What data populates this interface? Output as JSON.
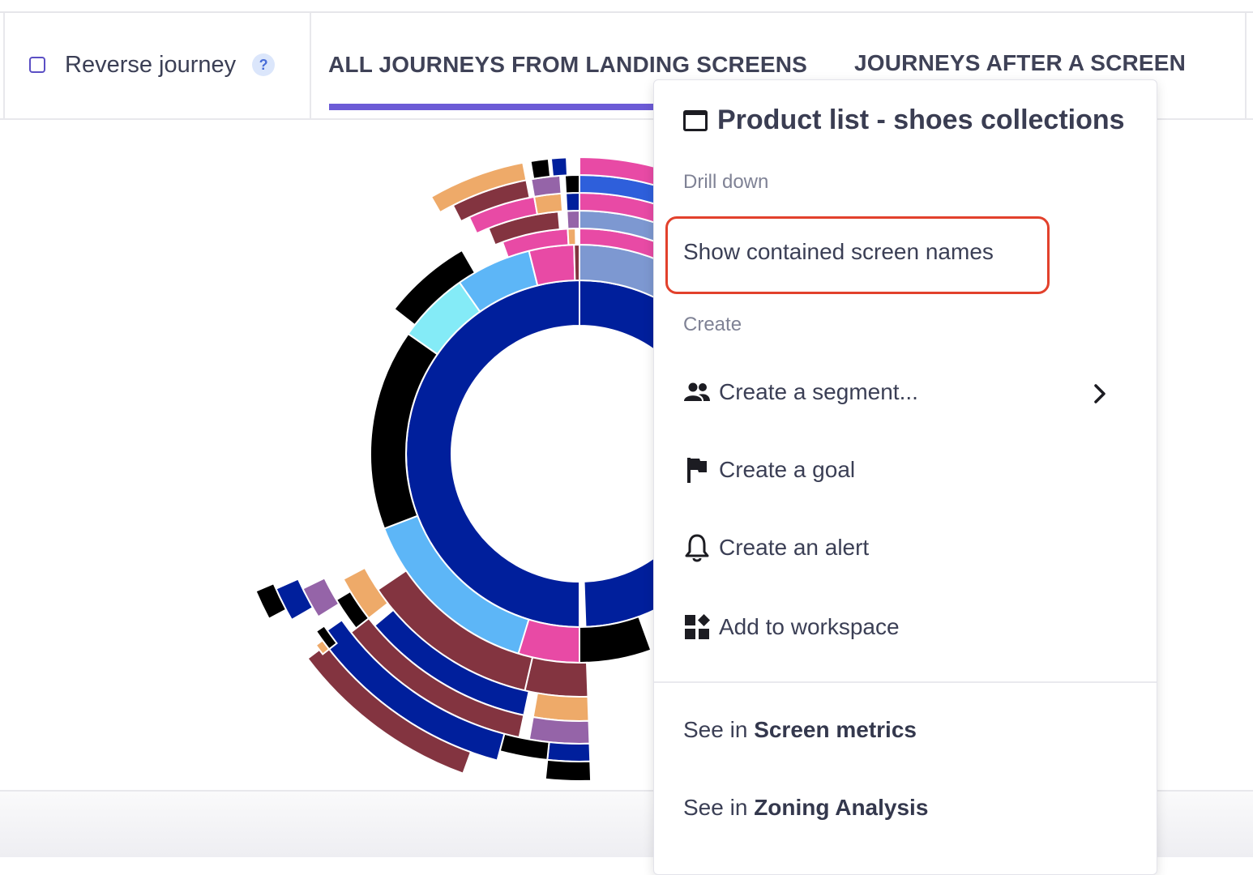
{
  "toolbar": {
    "reverse_journey_label": "Reverse journey",
    "help_glyph": "?",
    "tabs": [
      {
        "label": "ALL JOURNEYS FROM LANDING SCREENS",
        "active": true
      },
      {
        "label": "JOURNEYS AFTER A SCREEN",
        "active": false
      }
    ],
    "accent_color": "#6c5bd6"
  },
  "sunburst_colors": {
    "navy": "#001f9c",
    "light_blue": "#5db6f7",
    "cyan": "#84ebf7",
    "pink": "#e84aa5",
    "maroon": "#833440",
    "black": "#000000",
    "orange": "#eeaa69",
    "purple": "#9564a8",
    "blue": "#2e5fdb",
    "periwinkle": "#7d98d1"
  },
  "menu": {
    "title": "Product list - shoes collections",
    "drill_down_label": "Drill down",
    "show_contained_label": "Show contained screen names",
    "create_label": "Create",
    "items": [
      {
        "label": "Create a segment...",
        "icon": "people-icon",
        "has_submenu": true
      },
      {
        "label": "Create a goal",
        "icon": "flag-icon"
      },
      {
        "label": "Create an alert",
        "icon": "bell-icon"
      },
      {
        "label": "Add to workspace",
        "icon": "widgets-icon"
      }
    ],
    "see_in_prefix": "See in",
    "see_in_screen_metrics": "Screen metrics",
    "see_in_zoning": "Zoning Analysis",
    "highlight_color": "#e2412c"
  }
}
